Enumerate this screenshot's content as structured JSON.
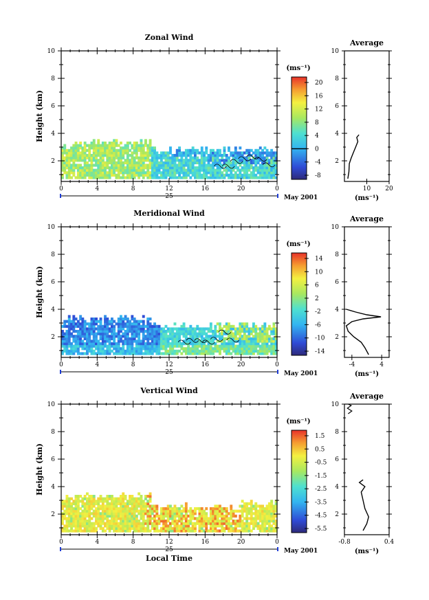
{
  "chart_data": [
    {
      "type": "heatmap",
      "title": "Zonal Wind",
      "ylabel": "Height (km)",
      "xlim": [
        0,
        24
      ],
      "ylim": [
        0.5,
        10
      ],
      "x_ticks": [
        "0",
        "4",
        "8",
        "12",
        "16",
        "20",
        "0"
      ],
      "y_ticks": [
        "2",
        "4",
        "6",
        "8",
        "10"
      ],
      "date_label": "25",
      "month_label": "May 2001",
      "colorbar": {
        "unit": "(ms⁻¹)",
        "range": [
          -10,
          22
        ],
        "ticks": [
          "20",
          "16",
          "12",
          "8",
          "4",
          "0",
          "-4",
          "-8"
        ],
        "contour_at": "0"
      },
      "pattern": "zonal",
      "average": {
        "title": "Average",
        "xlim": [
          0,
          20
        ],
        "x_ticks": [
          "10",
          "20"
        ],
        "xlabel": "(ms⁻¹)",
        "profile": [
          {
            "h": 0.7,
            "v": 1.5
          },
          {
            "h": 1.2,
            "v": 2.0
          },
          {
            "h": 1.8,
            "v": 2.2
          },
          {
            "h": 2.2,
            "v": 3.0
          },
          {
            "h": 2.6,
            "v": 4.0
          },
          {
            "h": 3.0,
            "v": 5.0
          },
          {
            "h": 3.4,
            "v": 6.0
          },
          {
            "h": 3.7,
            "v": 5.5
          },
          {
            "h": 3.9,
            "v": 6.5
          }
        ]
      }
    },
    {
      "type": "heatmap",
      "title": "Meridional Wind",
      "ylabel": "Height (km)",
      "xlim": [
        0,
        24
      ],
      "ylim": [
        0.5,
        10
      ],
      "x_ticks": [
        "0",
        "4",
        "8",
        "12",
        "16",
        "20",
        "0"
      ],
      "y_ticks": [
        "2",
        "4",
        "6",
        "8",
        "10"
      ],
      "date_label": "25",
      "month_label": "May 2001",
      "colorbar": {
        "unit": "(ms⁻¹)",
        "range": [
          -16,
          16
        ],
        "ticks": [
          "14",
          "10",
          "6",
          "2",
          "-2",
          "-6",
          "-10",
          "-14"
        ],
        "contour_at": "0"
      },
      "pattern": "meridional",
      "average": {
        "title": "Average",
        "xlim": [
          -6,
          6
        ],
        "x_ticks": [
          "-4",
          "4"
        ],
        "xlabel": "(ms⁻¹)",
        "profile": [
          {
            "h": 0.7,
            "v": 0.5
          },
          {
            "h": 1.2,
            "v": -0.5
          },
          {
            "h": 1.6,
            "v": -1.5
          },
          {
            "h": 2.0,
            "v": -3.5
          },
          {
            "h": 2.4,
            "v": -5.0
          },
          {
            "h": 2.8,
            "v": -5.5
          },
          {
            "h": 3.1,
            "v": -4.0
          },
          {
            "h": 3.3,
            "v": -1.0
          },
          {
            "h": 3.45,
            "v": 3.8
          },
          {
            "h": 3.6,
            "v": 0.0
          },
          {
            "h": 3.8,
            "v": -3.0
          },
          {
            "h": 4.0,
            "v": -5.5
          }
        ]
      }
    },
    {
      "type": "heatmap",
      "title": "Vertical Wind",
      "ylabel": "Height (km)",
      "xlabel": "Local Time",
      "xlim": [
        0,
        24
      ],
      "ylim": [
        0.5,
        10
      ],
      "x_ticks": [
        "0",
        "4",
        "8",
        "12",
        "16",
        "20",
        "0"
      ],
      "y_ticks": [
        "2",
        "4",
        "6",
        "8",
        "10"
      ],
      "date_label": "25",
      "month_label": "May 2001",
      "colorbar": {
        "unit": "(ms⁻¹)",
        "range": [
          -7,
          2
        ],
        "ticks": [
          "1.5",
          "0.5",
          "-0.5",
          "-1.5",
          "-2.5",
          "-3.5",
          "-4.5",
          "-5.5"
        ]
      },
      "pattern": "vertical",
      "average": {
        "title": "Average",
        "xlim": [
          -0.8,
          0.4
        ],
        "x_ticks": [
          "-0.8",
          "0.4"
        ],
        "xlabel": "(ms⁻¹)",
        "profile": [
          {
            "h": 0.8,
            "v": -0.3
          },
          {
            "h": 1.3,
            "v": -0.2
          },
          {
            "h": 1.8,
            "v": -0.15
          },
          {
            "h": 2.4,
            "v": -0.25
          },
          {
            "h": 3.0,
            "v": -0.3
          },
          {
            "h": 3.6,
            "v": -0.35
          },
          {
            "h": 4.0,
            "v": -0.25
          },
          {
            "h": 4.3,
            "v": -0.4
          },
          {
            "h": 4.5,
            "v": -0.3
          }
        ],
        "upper_profile": [
          {
            "h": 9.3,
            "v": -0.7
          },
          {
            "h": 9.5,
            "v": -0.6
          },
          {
            "h": 9.7,
            "v": -0.72
          },
          {
            "h": 9.9,
            "v": -0.62
          },
          {
            "h": 10.0,
            "v": -0.7
          }
        ]
      }
    }
  ]
}
